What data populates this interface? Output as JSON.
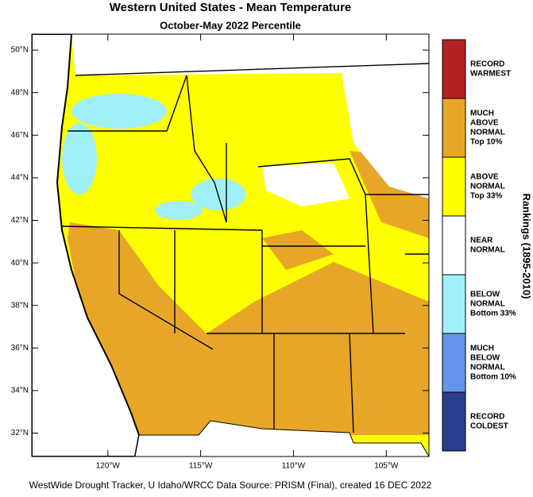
{
  "title": "Western United States - Mean Temperature",
  "subtitle": "October-May 2022 Percentile",
  "map": {
    "xlim": [
      -124.1,
      -102.7
    ],
    "ylim": [
      30.9,
      50.75
    ],
    "xticks": [
      {
        "value": -120,
        "label": "120°W"
      },
      {
        "value": -115,
        "label": "115°W"
      },
      {
        "value": -110,
        "label": "110°W"
      },
      {
        "value": -105,
        "label": "105°W"
      }
    ],
    "yticks": [
      {
        "value": 50,
        "label": "50°N"
      },
      {
        "value": 48,
        "label": "48°N"
      },
      {
        "value": 46,
        "label": "46°N"
      },
      {
        "value": 44,
        "label": "44°N"
      },
      {
        "value": 42,
        "label": "42°N"
      },
      {
        "value": 40,
        "label": "40°N"
      },
      {
        "value": 38,
        "label": "38°N"
      },
      {
        "value": 36,
        "label": "36°N"
      },
      {
        "value": 34,
        "label": "34°N"
      },
      {
        "value": 32,
        "label": "32°N"
      }
    ]
  },
  "legend": {
    "title": "Rankings (1895-2010)",
    "entries": [
      {
        "lines": [
          "RECORD",
          "WARMEST"
        ],
        "color": "#b22222"
      },
      {
        "lines": [
          "MUCH",
          "ABOVE",
          "NORMAL",
          "Top 10%"
        ],
        "color": "#e8a628"
      },
      {
        "lines": [
          "ABOVE",
          "NORMAL",
          "Top 33%"
        ],
        "color": "#ffff00"
      },
      {
        "lines": [
          "NEAR",
          "NORMAL"
        ],
        "color": "#ffffff"
      },
      {
        "lines": [
          "BELOW",
          "NORMAL",
          "Bottom 33%"
        ],
        "color": "#a0f0f8"
      },
      {
        "lines": [
          "MUCH",
          "BELOW",
          "NORMAL",
          "Bottom 10%"
        ],
        "color": "#6495ed"
      },
      {
        "lines": [
          "RECORD",
          "COLDEST"
        ],
        "color": "#2a3f8f"
      }
    ]
  },
  "footer": "WestWide Drought Tracker, U Idaho/WRCC Data Source: PRISM (Final), created 16 DEC 2022"
}
